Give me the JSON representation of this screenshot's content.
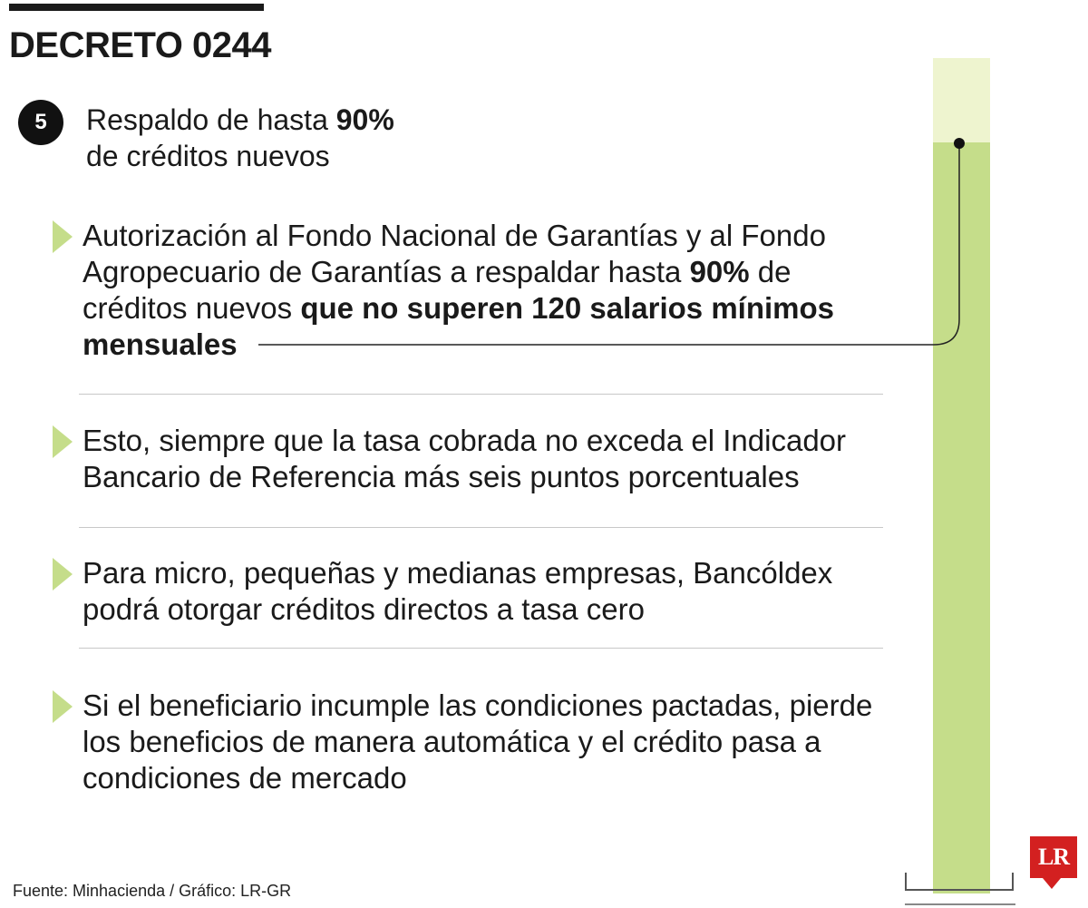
{
  "header": {
    "title": "DECRETO 0244"
  },
  "item": {
    "number": "5",
    "headline_pre": "Respaldo de hasta ",
    "headline_bold": "90%",
    "headline_line2": "de créditos nuevos"
  },
  "bullets": [
    {
      "p1": "Autorización al Fondo Nacional de Garantías y al Fondo Agropecuario de Garantías a respaldar hasta ",
      "b1": "90%",
      "p2": " de créditos nuevos ",
      "b2": "que no superen 120 salarios mínimos mensuales"
    },
    {
      "p1": "Esto, siempre que la tasa cobrada no exceda el Indicador Bancario de Referencia más seis puntos porcentuales"
    },
    {
      "p1": "Para micro, pequeñas y medianas empresas, Bancóldex podrá otorgar créditos directos a tasa cero"
    },
    {
      "p1": "Si el beneficiario incumple las condiciones pactadas, pierde los beneficios de manera automática y el crédito pasa a condiciones de mercado"
    }
  ],
  "gauge": {
    "level_percent": 90,
    "fill_color": "#c5dd8a",
    "empty_color": "#eef4cf"
  },
  "footer": {
    "source": "Fuente: Minhacienda / Gráfico: LR-GR",
    "logo": "LR"
  }
}
